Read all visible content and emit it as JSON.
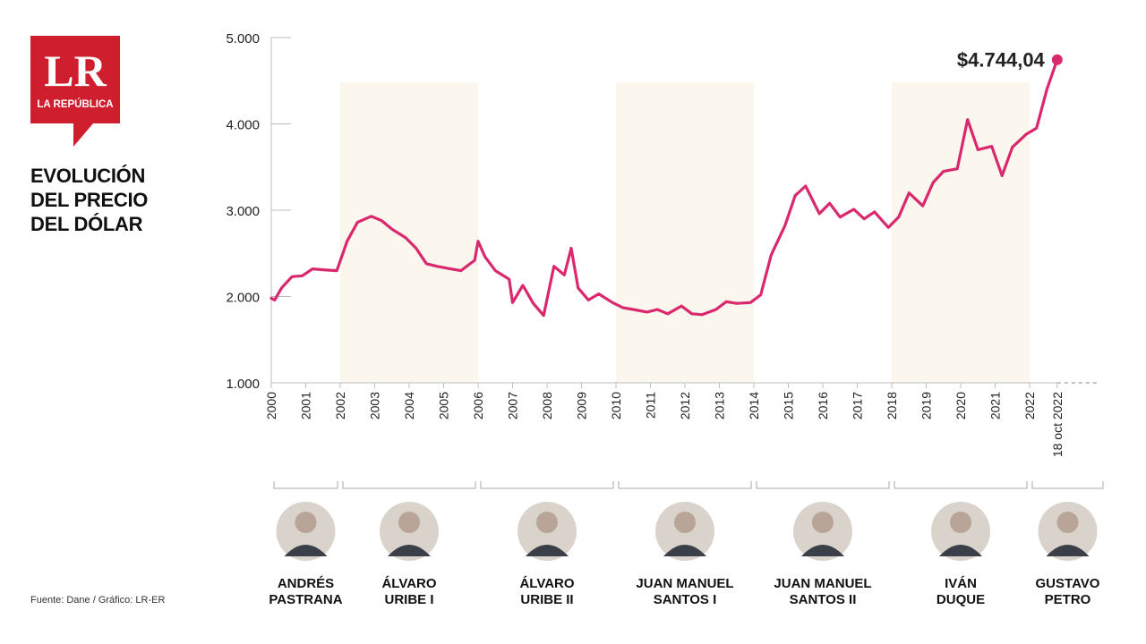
{
  "brand": {
    "logo_text": "LR",
    "logo_subtext": "LA REPÚBLICA",
    "color": "#cf1f2e"
  },
  "title_lines": [
    "EVOLUCIÓN",
    "DEL PRECIO",
    "DEL DÓLAR"
  ],
  "source": "Fuente: Dane / Gráfico: LR-ER",
  "colors": {
    "line": "#d9286e",
    "band": "#fbf7ee",
    "axis": "#bdbdbd"
  },
  "chart_data": {
    "type": "line",
    "ylim": [
      1000,
      5000
    ],
    "yticks": [
      "5.000",
      "4.000",
      "3.000",
      "2.000",
      "1.000"
    ],
    "ytick_values": [
      5000,
      4000,
      3000,
      2000,
      1000
    ],
    "xtick_labels": [
      "2000",
      "2001",
      "2002",
      "2003",
      "2004",
      "2005",
      "2006",
      "2007",
      "2008",
      "2009",
      "2010",
      "2011",
      "2012",
      "2013",
      "2014",
      "2015",
      "2016",
      "2017",
      "2018",
      "2019",
      "2020",
      "2021",
      "2022",
      "18 oct 2022"
    ],
    "last_value_label": "$4.744,04",
    "series": [
      {
        "x": [
          2000.0,
          2000.1,
          2000.3,
          2000.6,
          2000.9,
          2001.2,
          2001.5,
          2001.9,
          2002.2,
          2002.5,
          2002.9,
          2003.2,
          2003.5,
          2003.9,
          2004.2,
          2004.5,
          2004.8,
          2005.2,
          2005.5,
          2005.9,
          2006.0,
          2006.2,
          2006.5,
          2006.9,
          2007.0,
          2007.3,
          2007.6,
          2007.9,
          2008.2,
          2008.5,
          2008.7,
          2008.9,
          2009.2,
          2009.5,
          2009.9,
          2010.2,
          2010.5,
          2010.9,
          2011.2,
          2011.5,
          2011.9,
          2012.2,
          2012.5,
          2012.9,
          2013.2,
          2013.5,
          2013.9,
          2014.2,
          2014.5,
          2014.9,
          2015.2,
          2015.5,
          2015.9,
          2016.2,
          2016.5,
          2016.9,
          2017.2,
          2017.5,
          2017.9,
          2018.2,
          2018.5,
          2018.9,
          2019.2,
          2019.5,
          2019.9,
          2020.2,
          2020.5,
          2020.9,
          2021.2,
          2021.5,
          2021.9,
          2022.2,
          2022.5,
          2022.8
        ],
        "y": [
          1980,
          1960,
          2100,
          2230,
          2240,
          2320,
          2310,
          2300,
          2640,
          2860,
          2930,
          2880,
          2780,
          2680,
          2560,
          2380,
          2350,
          2320,
          2300,
          2420,
          2640,
          2460,
          2300,
          2200,
          1930,
          2130,
          1920,
          1780,
          2350,
          2250,
          2560,
          2100,
          1960,
          2030,
          1930,
          1870,
          1850,
          1820,
          1850,
          1800,
          1890,
          1800,
          1790,
          1850,
          1940,
          1920,
          1930,
          2020,
          2480,
          2820,
          3170,
          3280,
          2960,
          3080,
          2920,
          3010,
          2900,
          2980,
          2800,
          2920,
          3200,
          3050,
          3320,
          3450,
          3480,
          4050,
          3700,
          3740,
          3400,
          3730,
          3880,
          3950,
          4400,
          4744
        ]
      }
    ],
    "presidents": [
      {
        "line1": "ANDRÉS",
        "line2": "PASTRANA",
        "from": 2000,
        "to": 2002
      },
      {
        "line1": "ÁLVARO",
        "line2": "URIBE I",
        "from": 2002,
        "to": 2006
      },
      {
        "line1": "ÁLVARO",
        "line2": "URIBE II",
        "from": 2006,
        "to": 2010
      },
      {
        "line1": "JUAN MANUEL",
        "line2": "SANTOS I",
        "from": 2010,
        "to": 2014
      },
      {
        "line1": "JUAN MANUEL",
        "line2": "SANTOS II",
        "from": 2014,
        "to": 2018
      },
      {
        "line1": "IVÁN",
        "line2": "DUQUE",
        "from": 2018,
        "to": 2022
      },
      {
        "line1": "GUSTAVO",
        "line2": "PETRO",
        "from": 2022,
        "to": 2023
      }
    ],
    "shaded_terms": [
      [
        2002,
        2006
      ],
      [
        2010,
        2014
      ],
      [
        2018,
        2022
      ]
    ]
  }
}
